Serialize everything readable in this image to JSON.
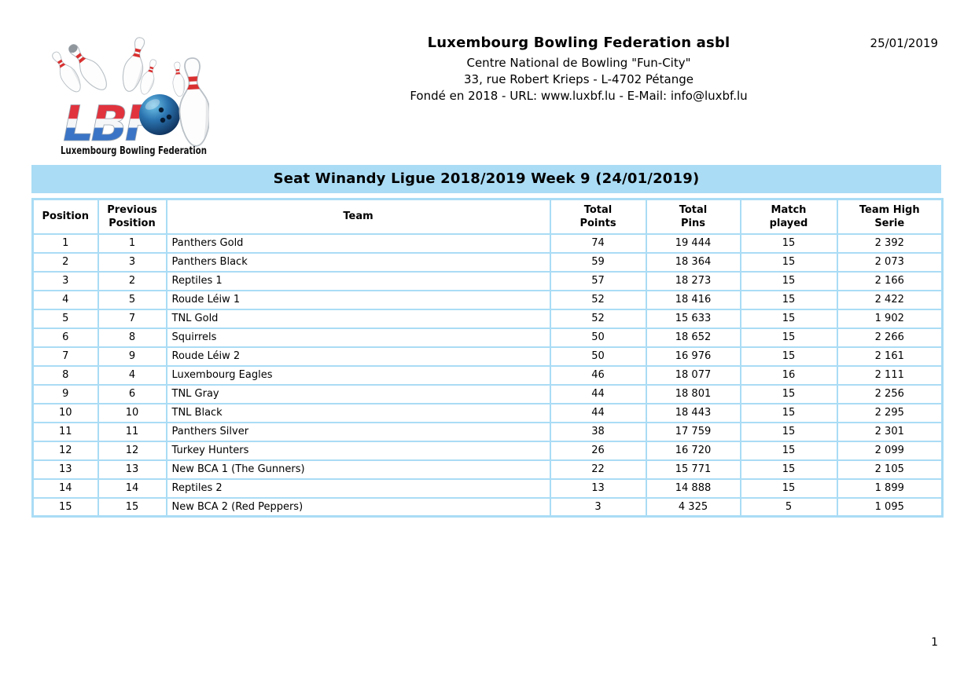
{
  "colors": {
    "accent_blue": "#aadcf5",
    "table_border_blue": "#aadcf5",
    "text_black": "#000000",
    "pin_stripe_red": "#d93030",
    "pin_white": "#fdfdfd",
    "ball_dark_blue": "#0d2c55",
    "ball_light_blue": "#6fc3e8",
    "lbf_red": "#e0333e",
    "lbf_white": "#f4f6f8",
    "lbf_blue": "#3a74c6"
  },
  "header": {
    "logo": {
      "lbf_text": "LBF",
      "caption": "Luxembourg Bowling Federation"
    },
    "org_name": "Luxembourg Bowling Federation asbl",
    "address_line1": "Centre National de Bowling \"Fun-City\"",
    "address_line2": "33, rue Robert Krieps - L-4702 Pétange",
    "address_line3": "Fondé en 2018 - URL: www.luxbf.lu - E-Mail: info@luxbf.lu",
    "date": "25/01/2019"
  },
  "section_title": "Seat Winandy Ligue 2018/2019 Week 9 (24/01/2019)",
  "standings_table": {
    "columns": [
      {
        "key": "position",
        "label": "Position"
      },
      {
        "key": "previous_position",
        "label": "Previous\nPosition"
      },
      {
        "key": "team",
        "label": "Team"
      },
      {
        "key": "total_points",
        "label": "Total\nPoints"
      },
      {
        "key": "total_pins",
        "label": "Total\nPins"
      },
      {
        "key": "match_played",
        "label": "Match\nplayed"
      },
      {
        "key": "team_high_serie",
        "label": "Team High\nSerie"
      }
    ],
    "rows": [
      {
        "position": "1",
        "previous_position": "1",
        "team": "Panthers Gold",
        "total_points": "74",
        "total_pins": "19 444",
        "match_played": "15",
        "team_high_serie": "2 392"
      },
      {
        "position": "2",
        "previous_position": "3",
        "team": "Panthers Black",
        "total_points": "59",
        "total_pins": "18 364",
        "match_played": "15",
        "team_high_serie": "2 073"
      },
      {
        "position": "3",
        "previous_position": "2",
        "team": "Reptiles 1",
        "total_points": "57",
        "total_pins": "18 273",
        "match_played": "15",
        "team_high_serie": "2 166"
      },
      {
        "position": "4",
        "previous_position": "5",
        "team": "Roude Léiw 1",
        "total_points": "52",
        "total_pins": "18 416",
        "match_played": "15",
        "team_high_serie": "2 422"
      },
      {
        "position": "5",
        "previous_position": "7",
        "team": "TNL Gold",
        "total_points": "52",
        "total_pins": "15 633",
        "match_played": "15",
        "team_high_serie": "1 902"
      },
      {
        "position": "6",
        "previous_position": "8",
        "team": "Squirrels",
        "total_points": "50",
        "total_pins": "18 652",
        "match_played": "15",
        "team_high_serie": "2 266"
      },
      {
        "position": "7",
        "previous_position": "9",
        "team": "Roude Léiw 2",
        "total_points": "50",
        "total_pins": "16 976",
        "match_played": "15",
        "team_high_serie": "2 161"
      },
      {
        "position": "8",
        "previous_position": "4",
        "team": "Luxembourg Eagles",
        "total_points": "46",
        "total_pins": "18 077",
        "match_played": "16",
        "team_high_serie": "2 111"
      },
      {
        "position": "9",
        "previous_position": "6",
        "team": "TNL Gray",
        "total_points": "44",
        "total_pins": "18 801",
        "match_played": "15",
        "team_high_serie": "2 256"
      },
      {
        "position": "10",
        "previous_position": "10",
        "team": "TNL Black",
        "total_points": "44",
        "total_pins": "18 443",
        "match_played": "15",
        "team_high_serie": "2 295"
      },
      {
        "position": "11",
        "previous_position": "11",
        "team": "Panthers Silver",
        "total_points": "38",
        "total_pins": "17 759",
        "match_played": "15",
        "team_high_serie": "2 301"
      },
      {
        "position": "12",
        "previous_position": "12",
        "team": "Turkey Hunters",
        "total_points": "26",
        "total_pins": "16 720",
        "match_played": "15",
        "team_high_serie": "2 099"
      },
      {
        "position": "13",
        "previous_position": "13",
        "team": "New BCA 1 (The Gunners)",
        "total_points": "22",
        "total_pins": "15 771",
        "match_played": "15",
        "team_high_serie": "2 105"
      },
      {
        "position": "14",
        "previous_position": "14",
        "team": "Reptiles 2",
        "total_points": "13",
        "total_pins": "14 888",
        "match_played": "15",
        "team_high_serie": "1 899"
      },
      {
        "position": "15",
        "previous_position": "15",
        "team": "New BCA 2 (Red Peppers)",
        "total_points": "3",
        "total_pins": "4 325",
        "match_played": "5",
        "team_high_serie": "1 095"
      }
    ]
  },
  "footer": {
    "page_number": "1"
  }
}
